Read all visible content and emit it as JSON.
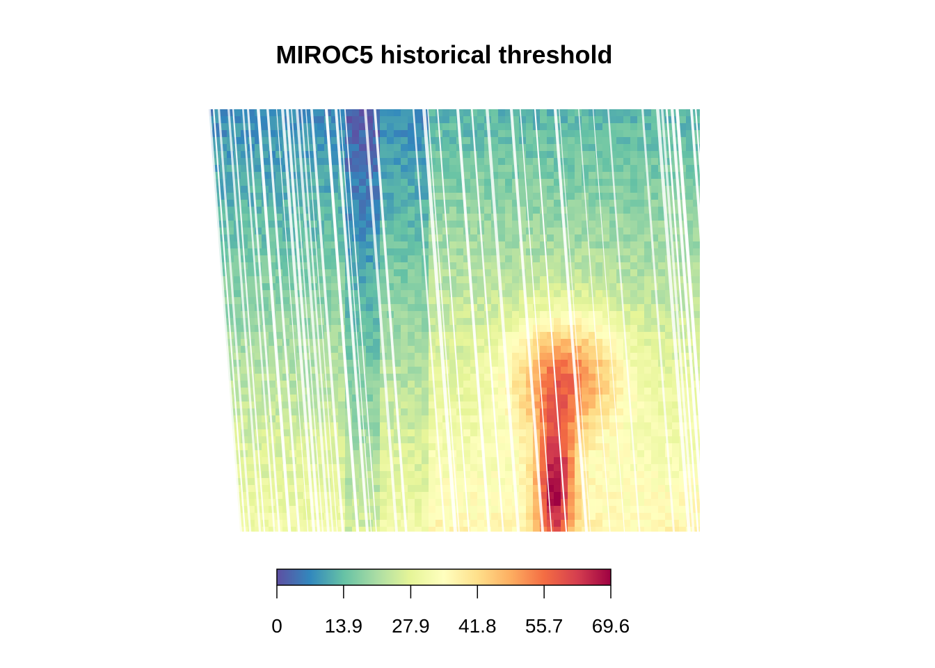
{
  "chart_data": {
    "type": "heatmap",
    "title": "MIROC5 historical threshold",
    "colorbar": {
      "min": 0,
      "max": 69.6,
      "ticks": [
        "0",
        "13.9",
        "27.9",
        "41.8",
        "55.7",
        "69.6"
      ],
      "tick_values": [
        0,
        13.9,
        27.9,
        41.8,
        55.7,
        69.6
      ],
      "palette": [
        "#5E4FA2",
        "#3288BD",
        "#66C2A5",
        "#ABDDA4",
        "#E6F598",
        "#FFFFBF",
        "#FEE08B",
        "#FDAE61",
        "#F46D43",
        "#D53E4F",
        "#9E0142"
      ]
    },
    "axes": "none",
    "grid": false
  }
}
